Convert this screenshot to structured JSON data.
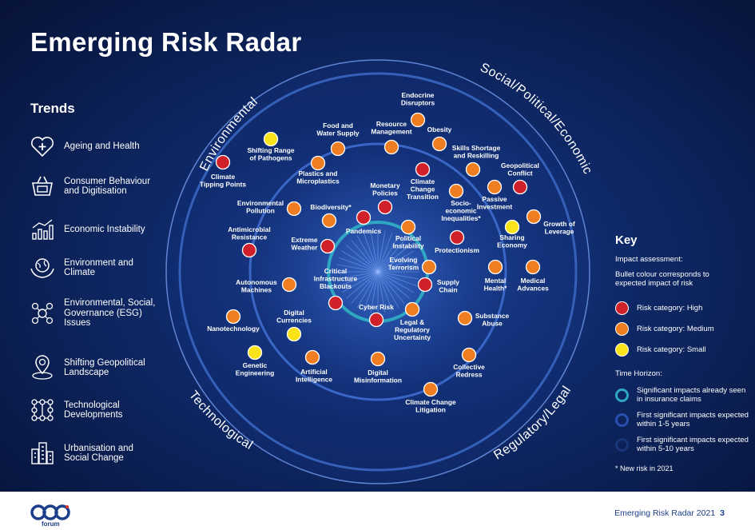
{
  "title": "Emerging Risk Radar",
  "trends": {
    "heading": "Trends",
    "items": [
      {
        "label": "Ageing and Health",
        "icon": "heart-plus-icon"
      },
      {
        "label": "Consumer Behaviour and Digitisation",
        "icon": "shopping-basket-icon"
      },
      {
        "label": "Economic Instability",
        "icon": "bar-chart-icon"
      },
      {
        "label": "Environment and Climate",
        "icon": "globe-hands-icon"
      },
      {
        "label": "Environmental, Social, Governance (ESG) Issues",
        "icon": "esg-network-icon"
      },
      {
        "label": "Shifting Geopolitical Landscape",
        "icon": "map-pin-globe-icon"
      },
      {
        "label": "Technological Developments",
        "icon": "circuit-nodes-icon"
      },
      {
        "label": "Urbanisation and Social Change",
        "icon": "city-buildings-icon"
      }
    ]
  },
  "sectors": {
    "environmental": "Environmental",
    "social": "Social/Political/Economic",
    "technological": "Technological",
    "regulatory": "Regulatory/Legal"
  },
  "risks": [
    {
      "label": "Endocrine Disruptors",
      "category": "medium"
    },
    {
      "label": "Resource Management",
      "category": "medium"
    },
    {
      "label": "Obesity",
      "category": "medium"
    },
    {
      "label": "Food and Water Supply",
      "category": "medium"
    },
    {
      "label": "Shifting Range of Pathogens",
      "category": "small"
    },
    {
      "label": "Skills Shortage and Reskilling",
      "category": "medium"
    },
    {
      "label": "Plastics and Microplastics",
      "category": "medium"
    },
    {
      "label": "Climate Tipping Points",
      "category": "high"
    },
    {
      "label": "Geopolitical Conflict",
      "category": "high"
    },
    {
      "label": "Climate Change Transition",
      "category": "high"
    },
    {
      "label": "Monetary Policies",
      "category": "high"
    },
    {
      "label": "Socio-economic Inequalities*",
      "category": "medium"
    },
    {
      "label": "Passive Investment",
      "category": "medium"
    },
    {
      "label": "Environmental Pollution",
      "category": "medium"
    },
    {
      "label": "Biodiversity*",
      "category": "medium"
    },
    {
      "label": "Growth of Leverage",
      "category": "medium"
    },
    {
      "label": "Pandemics",
      "category": "high"
    },
    {
      "label": "Political Instability",
      "category": "medium"
    },
    {
      "label": "Sharing Economy",
      "category": "small"
    },
    {
      "label": "Antimicrobial Resistance",
      "category": "high"
    },
    {
      "label": "Extreme Weather",
      "category": "high"
    },
    {
      "label": "Protectionism",
      "category": "high"
    },
    {
      "label": "Evolving Terrorism",
      "category": "medium"
    },
    {
      "label": "Mental Health*",
      "category": "medium"
    },
    {
      "label": "Medical Advances",
      "category": "medium"
    },
    {
      "label": "Critical Infrastructure Blackouts",
      "category": "high"
    },
    {
      "label": "Autonomous Machines",
      "category": "medium"
    },
    {
      "label": "Supply Chain",
      "category": "high"
    },
    {
      "label": "Cyber Risk",
      "category": "high"
    },
    {
      "label": "Digital Currencies",
      "category": "small"
    },
    {
      "label": "Legal & Regulatory Uncertainty",
      "category": "medium"
    },
    {
      "label": "Substance Abuse",
      "category": "medium"
    },
    {
      "label": "Nanotechnology",
      "category": "medium"
    },
    {
      "label": "Genetic Engineering",
      "category": "small"
    },
    {
      "label": "Artificial Intelligence",
      "category": "medium"
    },
    {
      "label": "Digital Misinformation",
      "category": "medium"
    },
    {
      "label": "Collective Redress",
      "category": "medium"
    },
    {
      "label": "Climate Change Litigation",
      "category": "medium"
    }
  ],
  "key": {
    "title": "Key",
    "impact_heading": "Impact assessment:",
    "impact_desc": "Bullet colour corresponds to expected impact of risk",
    "high": "Risk category: High",
    "medium": "Risk category: Medium",
    "small": "Risk category: Small",
    "horizon_heading": "Time Horizon:",
    "h1": "Significant impacts already seen in insurance claims",
    "h2": "First significant impacts expected within 1-5 years",
    "h3": "First significant impacts expected within 5-10 years",
    "note": "* New risk in 2021"
  },
  "colors": {
    "high": "#d0202a",
    "medium": "#ef7d22",
    "small": "#fbe31a",
    "ring_inner": "#2fa7c2",
    "ring_mid": "#2a4fb0",
    "ring_outer": "#1a3478"
  },
  "footer": {
    "logo_text": "forum",
    "report": "Emerging Risk Radar 2021",
    "page": "3"
  }
}
